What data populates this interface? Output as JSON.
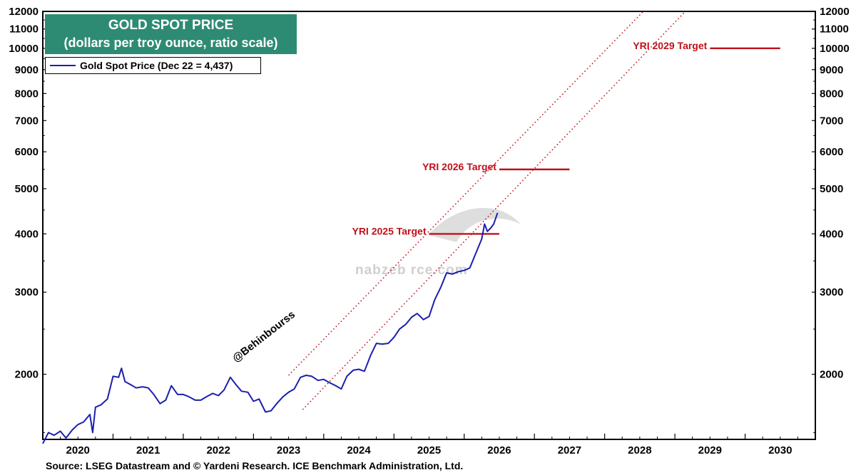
{
  "chart_data": {
    "type": "line",
    "title": "GOLD SPOT PRICE",
    "subtitle": "(dollars per troy ounce, ratio scale)",
    "legend": {
      "placement": "top-left",
      "label": "Gold Spot Price (Dec 22 = 4,437)"
    },
    "y_scale": "log",
    "ylim": [
      1450,
      12000
    ],
    "xlim": [
      2019.5,
      2030.5
    ],
    "y_ticks": [
      2000,
      3000,
      4000,
      5000,
      6000,
      7000,
      8000,
      9000,
      10000,
      11000,
      12000
    ],
    "x_tick_labels": [
      "2020",
      "2021",
      "2022",
      "2023",
      "2024",
      "2025",
      "2026",
      "2027",
      "2028",
      "2029",
      "2030"
    ],
    "grid": false,
    "series": [
      {
        "name": "Gold Spot Price (Dec 22 = 4,437)",
        "color": "#1c1fae",
        "x": [
          2019.5,
          2019.58,
          2019.66,
          2019.75,
          2019.83,
          2019.92,
          2020.0,
          2020.08,
          2020.17,
          2020.21,
          2020.25,
          2020.33,
          2020.42,
          2020.5,
          2020.58,
          2020.62,
          2020.67,
          2020.75,
          2020.83,
          2020.92,
          2021.0,
          2021.08,
          2021.17,
          2021.25,
          2021.33,
          2021.42,
          2021.5,
          2021.58,
          2021.67,
          2021.75,
          2021.83,
          2021.92,
          2022.0,
          2022.08,
          2022.17,
          2022.25,
          2022.33,
          2022.42,
          2022.5,
          2022.58,
          2022.67,
          2022.75,
          2022.83,
          2022.92,
          2023.0,
          2023.08,
          2023.17,
          2023.25,
          2023.33,
          2023.42,
          2023.5,
          2023.58,
          2023.67,
          2023.75,
          2023.83,
          2023.92,
          2024.0,
          2024.08,
          2024.17,
          2024.25,
          2024.33,
          2024.42,
          2024.5,
          2024.58,
          2024.67,
          2024.75,
          2024.83,
          2024.92,
          2025.0,
          2025.08,
          2025.17,
          2025.25,
          2025.33,
          2025.42,
          2025.5,
          2025.58,
          2025.67,
          2025.75,
          2025.79,
          2025.83,
          2025.88,
          2025.92,
          2025.975
        ],
        "y": [
          1420,
          1500,
          1480,
          1510,
          1460,
          1520,
          1560,
          1580,
          1640,
          1500,
          1700,
          1720,
          1770,
          1980,
          1970,
          2060,
          1930,
          1900,
          1870,
          1880,
          1870,
          1810,
          1730,
          1760,
          1890,
          1810,
          1810,
          1790,
          1760,
          1760,
          1790,
          1820,
          1800,
          1850,
          1970,
          1900,
          1840,
          1830,
          1750,
          1770,
          1660,
          1670,
          1730,
          1790,
          1830,
          1860,
          1970,
          1990,
          1980,
          1940,
          1950,
          1920,
          1890,
          1860,
          1980,
          2040,
          2050,
          2030,
          2200,
          2330,
          2320,
          2330,
          2400,
          2500,
          2560,
          2650,
          2700,
          2620,
          2660,
          2890,
          3080,
          3300,
          3280,
          3320,
          3340,
          3380,
          3650,
          3900,
          4200,
          4050,
          4120,
          4200,
          4437
        ]
      }
    ],
    "channel_lines": [
      {
        "name": "upper",
        "style": "dotted",
        "color": "#c0111a"
      },
      {
        "name": "lower",
        "style": "dotted",
        "color": "#c0111a"
      }
    ],
    "targets": [
      {
        "label": "YRI 2025 Target",
        "value": 4000,
        "x_start": 2025.0,
        "x_end": 2026.0
      },
      {
        "label": "YRI 2026 Target",
        "value": 5500,
        "x_start": 2026.0,
        "x_end": 2027.0
      },
      {
        "label": "YRI 2029 Target",
        "value": 10000,
        "x_start": 2029.0,
        "x_end": 2030.0
      }
    ],
    "target_color": "#c0111a",
    "annotations": [
      "@Behinbourss"
    ]
  },
  "title_box": {
    "title": "GOLD SPOT PRICE",
    "subtitle": "(dollars per troy ounce, ratio scale)",
    "color": "#2e8b73"
  },
  "legend": {
    "label": "Gold Spot Price (Dec 22 = 4,437)"
  },
  "watermark": {
    "text": "nabzeb  rce.com"
  },
  "source": "Source: LSEG Datastream and © Yardeni Research. ICE Benchmark Administration, Ltd."
}
